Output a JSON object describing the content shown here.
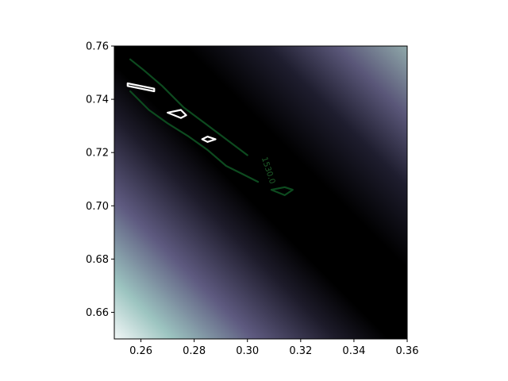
{
  "chart_data": {
    "type": "heatmap",
    "title": "",
    "xlabel": "",
    "ylabel": "",
    "xlim": [
      0.25,
      0.36
    ],
    "ylim": [
      0.65,
      0.76
    ],
    "x_ticks": [
      "0.26",
      "0.28",
      "0.30",
      "0.32",
      "0.34",
      "0.36"
    ],
    "x_tick_values": [
      0.26,
      0.28,
      0.3,
      0.32,
      0.34,
      0.36
    ],
    "y_ticks": [
      "0.66",
      "0.68",
      "0.70",
      "0.72",
      "0.74",
      "0.76"
    ],
    "y_tick_values": [
      0.66,
      0.68,
      0.7,
      0.72,
      0.74,
      0.76
    ],
    "grid": false,
    "colormap": "bone-purple",
    "colors": {
      "contour_line": "#0d4a1f",
      "minimum_marker": "#ffffff",
      "low": "#000000",
      "high": "#ffffff"
    },
    "contours": [
      {
        "level": 1530.0,
        "label": "1530.0",
        "label_position": [
          0.307,
          0.713
        ],
        "paths": [
          [
            [
              0.256,
              0.755
            ],
            [
              0.261,
              0.751
            ],
            [
              0.268,
              0.745
            ],
            [
              0.276,
              0.737
            ],
            [
              0.284,
              0.731
            ],
            [
              0.292,
              0.725
            ],
            [
              0.3,
              0.719
            ]
          ],
          [
            [
              0.256,
              0.743
            ],
            [
              0.263,
              0.736
            ],
            [
              0.27,
              0.731
            ],
            [
              0.278,
              0.726
            ],
            [
              0.285,
              0.721
            ],
            [
              0.292,
              0.715
            ],
            [
              0.298,
              0.712
            ],
            [
              0.304,
              0.709
            ]
          ],
          [
            [
              0.309,
              0.706
            ],
            [
              0.314,
              0.704
            ],
            [
              0.317,
              0.706
            ],
            [
              0.314,
              0.707
            ],
            [
              0.309,
              0.706
            ]
          ]
        ]
      }
    ],
    "minimum_regions": [
      [
        [
          0.255,
          0.746
        ],
        [
          0.265,
          0.744
        ],
        [
          0.265,
          0.743
        ],
        [
          0.255,
          0.745
        ],
        [
          0.255,
          0.746
        ]
      ],
      [
        [
          0.27,
          0.735
        ],
        [
          0.275,
          0.736
        ],
        [
          0.277,
          0.734
        ],
        [
          0.275,
          0.733
        ],
        [
          0.27,
          0.735
        ]
      ],
      [
        [
          0.283,
          0.725
        ],
        [
          0.285,
          0.726
        ],
        [
          0.288,
          0.725
        ],
        [
          0.285,
          0.724
        ],
        [
          0.283,
          0.725
        ]
      ]
    ]
  }
}
